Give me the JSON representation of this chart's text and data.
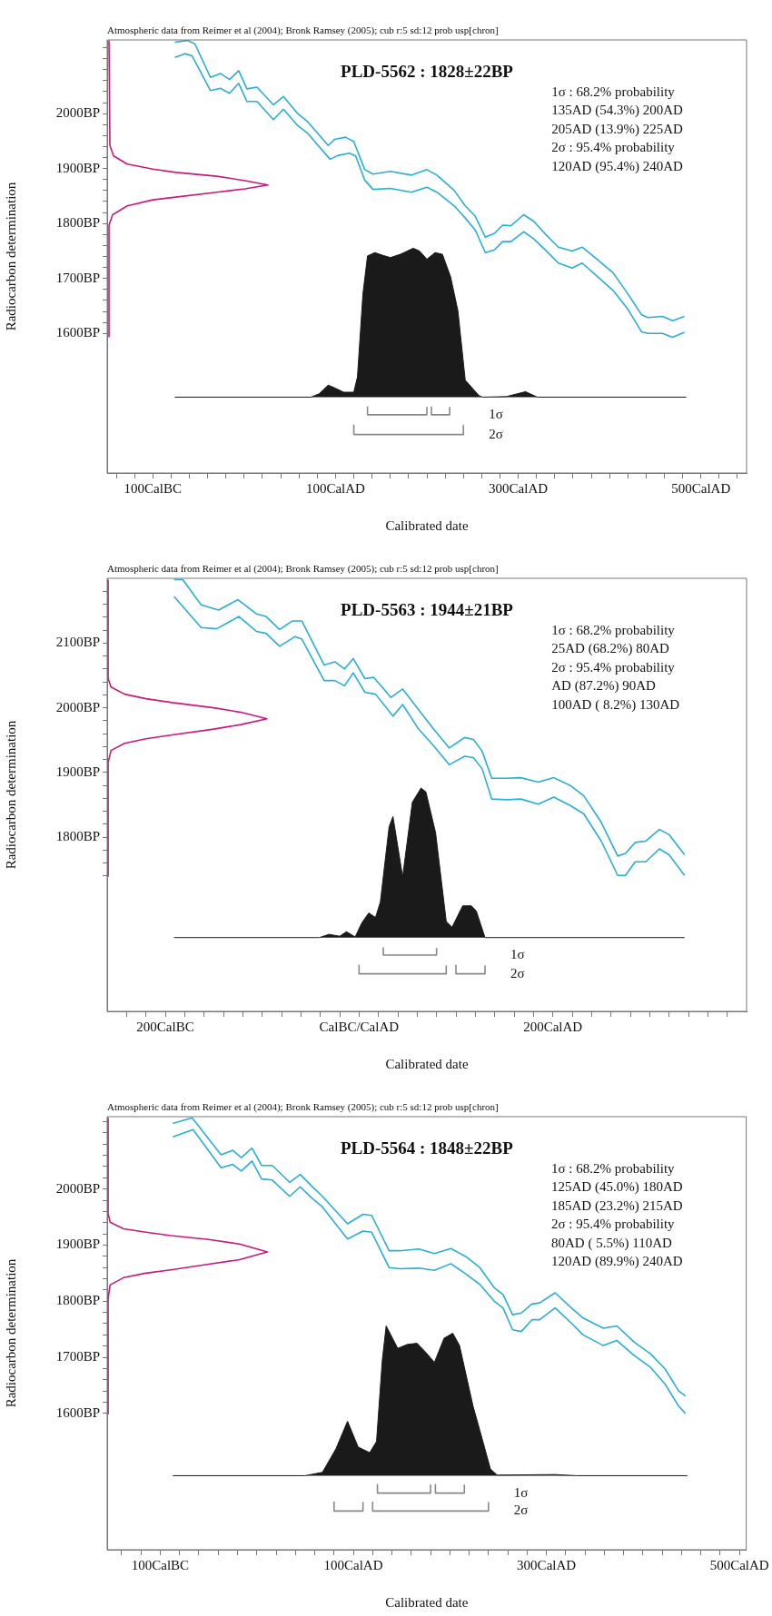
{
  "chart_data": [
    {
      "type": "line",
      "title": "PLD-5562 : 1828±22BP",
      "subtitle": "Atmospheric data from Reimer et al (2004); Bronk Ramsey (2005); cub r:5 sd:12 prob usp[chron]",
      "xlabel": "Calibrated date",
      "ylabel": "Radiocarbon determination",
      "xlim": [
        -150,
        550
      ],
      "ylim": [
        1346,
        2134
      ],
      "xticks": [
        {
          "value": -140,
          "label": null
        },
        {
          "value": -120,
          "label": null
        },
        {
          "value": -100,
          "label": "100CalBC"
        },
        {
          "value": -80,
          "label": null
        },
        {
          "value": -60,
          "label": null
        },
        {
          "value": -40,
          "label": null
        },
        {
          "value": -20,
          "label": null
        },
        {
          "value": 0,
          "label": null
        },
        {
          "value": 20,
          "label": null
        },
        {
          "value": 40,
          "label": null
        },
        {
          "value": 60,
          "label": null
        },
        {
          "value": 80,
          "label": null
        },
        {
          "value": 100,
          "label": "100CalAD"
        },
        {
          "value": 120,
          "label": null
        },
        {
          "value": 140,
          "label": null
        },
        {
          "value": 160,
          "label": null
        },
        {
          "value": 180,
          "label": null
        },
        {
          "value": 200,
          "label": null
        },
        {
          "value": 220,
          "label": null
        },
        {
          "value": 240,
          "label": null
        },
        {
          "value": 260,
          "label": null
        },
        {
          "value": 280,
          "label": null
        },
        {
          "value": 300,
          "label": "300CalAD"
        },
        {
          "value": 320,
          "label": null
        },
        {
          "value": 340,
          "label": null
        },
        {
          "value": 360,
          "label": null
        },
        {
          "value": 380,
          "label": null
        },
        {
          "value": 400,
          "label": null
        },
        {
          "value": 420,
          "label": null
        },
        {
          "value": 440,
          "label": null
        },
        {
          "value": 460,
          "label": null
        },
        {
          "value": 480,
          "label": null
        },
        {
          "value": 500,
          "label": "500CalAD"
        },
        {
          "value": 520,
          "label": null
        },
        {
          "value": 540,
          "label": null
        }
      ],
      "yticks": [
        {
          "value": 1600,
          "label": "1600BP"
        },
        {
          "value": 1620,
          "label": null
        },
        {
          "value": 1640,
          "label": null
        },
        {
          "value": 1660,
          "label": null
        },
        {
          "value": 1680,
          "label": null
        },
        {
          "value": 1700,
          "label": "1700BP"
        },
        {
          "value": 1720,
          "label": null
        },
        {
          "value": 1740,
          "label": null
        },
        {
          "value": 1760,
          "label": null
        },
        {
          "value": 1780,
          "label": null
        },
        {
          "value": 1800,
          "label": "1800BP"
        },
        {
          "value": 1820,
          "label": null
        },
        {
          "value": 1840,
          "label": null
        },
        {
          "value": 1860,
          "label": null
        },
        {
          "value": 1880,
          "label": null
        },
        {
          "value": 1900,
          "label": "1900BP"
        },
        {
          "value": 1920,
          "label": null
        },
        {
          "value": 1940,
          "label": null
        },
        {
          "value": 1960,
          "label": null
        },
        {
          "value": 1980,
          "label": null
        },
        {
          "value": 2000,
          "label": "2000BP"
        },
        {
          "value": 2020,
          "label": null
        },
        {
          "value": 2040,
          "label": null
        },
        {
          "value": 2060,
          "label": null
        },
        {
          "value": 2080,
          "label": null
        },
        {
          "value": 2100,
          "label": null
        },
        {
          "value": 2120,
          "label": null
        }
      ],
      "series": [
        {
          "color": "#2aaed3",
          "x": [
            -76,
            -62,
            -54,
            -37,
            -26,
            -16,
            -6,
            3,
            14,
            32,
            43,
            58,
            69,
            92,
            99,
            111,
            120,
            132,
            141,
            160,
            183,
            200,
            211,
            230,
            242,
            253,
            264,
            274,
            283,
            292,
            306,
            317,
            329,
            344,
            359,
            370,
            389,
            404,
            420,
            435,
            442,
            458,
            469,
            482
          ],
          "values": [
            2130,
            2133,
            2127,
            2066,
            2073,
            2062,
            2078,
            2045,
            2048,
            2016,
            2031,
            2001,
            1986,
            1942,
            1953,
            1957,
            1949,
            1898,
            1890,
            1895,
            1888,
            1898,
            1888,
            1860,
            1832,
            1813,
            1775,
            1782,
            1797,
            1796,
            1816,
            1804,
            1782,
            1757,
            1750,
            1757,
            1731,
            1710,
            1672,
            1634,
            1629,
            1631,
            1623,
            1631
          ]
        },
        {
          "color": "#2aaed3",
          "x": [
            -76,
            -65,
            -57,
            -37,
            -26,
            -16,
            -6,
            3,
            14,
            32,
            43,
            58,
            69,
            94,
            103,
            115,
            122,
            132,
            141,
            160,
            183,
            200,
            211,
            230,
            242,
            253,
            264,
            274,
            283,
            292,
            306,
            317,
            329,
            344,
            359,
            370,
            389,
            404,
            420,
            435,
            442,
            458,
            469,
            482
          ],
          "values": [
            2102,
            2109,
            2105,
            2042,
            2046,
            2037,
            2055,
            2022,
            2022,
            1989,
            2008,
            1979,
            1965,
            1917,
            1924,
            1928,
            1923,
            1879,
            1862,
            1864,
            1857,
            1866,
            1857,
            1832,
            1810,
            1788,
            1747,
            1752,
            1767,
            1767,
            1785,
            1772,
            1753,
            1728,
            1719,
            1728,
            1700,
            1678,
            1644,
            1603,
            1600,
            1600,
            1593,
            1602
          ]
        },
        {
          "color": "#c8197c",
          "x": [
            -148,
            -148,
            -144,
            -128,
            -100,
            -75,
            -30,
            1,
            26,
            1,
            -30,
            -75,
            -100,
            -128,
            -143,
            -147,
            -148
          ],
          "values": [
            1593,
            1797,
            1816,
            1832,
            1843,
            1848,
            1857,
            1863,
            1870,
            1878,
            1886,
            1893,
            1899,
            1908,
            1923,
            1942,
            2133
          ]
        },
        {
          "type": "area",
          "color": "#1a1a1a",
          "x": [
            -76,
            73,
            82,
            92,
            99,
            109,
            120,
            124,
            130,
            135,
            143,
            152,
            160,
            171,
            185,
            192,
            200,
            209,
            217,
            226,
            234,
            242,
            257,
            261,
            287,
            308,
            321,
            484
          ],
          "values": [
            1484,
            1484,
            1490,
            1506,
            1501,
            1493,
            1493,
            1521,
            1672,
            1741,
            1747,
            1742,
            1738,
            1744,
            1755,
            1750,
            1735,
            1747,
            1744,
            1703,
            1641,
            1515,
            1487,
            1484,
            1485,
            1494,
            1484,
            1484
          ]
        },
        {
          "name": "1σ",
          "color": "#888888",
          "x": [
            135,
            135,
            200,
            200,
            202,
            205,
            205,
            225,
            225
          ],
          "values": [
            1466,
            1452,
            1452,
            1466,
            null,
            1466,
            1452,
            1452,
            1466
          ]
        },
        {
          "name": "2σ",
          "color": "#888888",
          "x": [
            120,
            120,
            240,
            240
          ],
          "values": [
            1433,
            1416,
            1416,
            1433
          ]
        }
      ],
      "annotations": [
        "1σ : 68.2% probability",
        "135AD (54.3%) 200AD",
        "205AD (13.9%) 225AD",
        "2σ : 95.4% probability",
        "120AD (95.4%) 240AD"
      ]
    },
    {
      "type": "line",
      "title": "PLD-5563 : 1944±21BP",
      "subtitle": "Atmospheric data from Reimer et al (2004); Bronk Ramsey (2005); cub r:5 sd:12 prob usp[chron]",
      "xlabel": "Calibrated date",
      "ylabel": "Radiocarbon determination",
      "xlim": [
        -260,
        400
      ],
      "ylim": [
        1531,
        2200
      ],
      "xticks": [
        {
          "value": -240,
          "label": null
        },
        {
          "value": -220,
          "label": null
        },
        {
          "value": -200,
          "label": "200CalBC"
        },
        {
          "value": -180,
          "label": null
        },
        {
          "value": -160,
          "label": null
        },
        {
          "value": -140,
          "label": null
        },
        {
          "value": -120,
          "label": null
        },
        {
          "value": -100,
          "label": null
        },
        {
          "value": -80,
          "label": null
        },
        {
          "value": -60,
          "label": null
        },
        {
          "value": -40,
          "label": null
        },
        {
          "value": -20,
          "label": null
        },
        {
          "value": 0,
          "label": "CalBC/CalAD"
        },
        {
          "value": 20,
          "label": null
        },
        {
          "value": 40,
          "label": null
        },
        {
          "value": 60,
          "label": null
        },
        {
          "value": 80,
          "label": null
        },
        {
          "value": 100,
          "label": null
        },
        {
          "value": 120,
          "label": null
        },
        {
          "value": 140,
          "label": null
        },
        {
          "value": 160,
          "label": null
        },
        {
          "value": 180,
          "label": null
        },
        {
          "value": 200,
          "label": "200CalAD"
        },
        {
          "value": 220,
          "label": null
        },
        {
          "value": 240,
          "label": null
        },
        {
          "value": 260,
          "label": null
        },
        {
          "value": 280,
          "label": null
        },
        {
          "value": 300,
          "label": null
        },
        {
          "value": 320,
          "label": null
        },
        {
          "value": 340,
          "label": null
        },
        {
          "value": 360,
          "label": null
        },
        {
          "value": 380,
          "label": null
        }
      ],
      "yticks": [
        {
          "value": 1740,
          "label": null
        },
        {
          "value": 1760,
          "label": null
        },
        {
          "value": 1780,
          "label": null
        },
        {
          "value": 1800,
          "label": "1800BP"
        },
        {
          "value": 1820,
          "label": null
        },
        {
          "value": 1840,
          "label": null
        },
        {
          "value": 1860,
          "label": null
        },
        {
          "value": 1880,
          "label": null
        },
        {
          "value": 1900,
          "label": "1900BP"
        },
        {
          "value": 1920,
          "label": null
        },
        {
          "value": 1940,
          "label": null
        },
        {
          "value": 1960,
          "label": null
        },
        {
          "value": 1980,
          "label": null
        },
        {
          "value": 2000,
          "label": "2000BP"
        },
        {
          "value": 2020,
          "label": null
        },
        {
          "value": 2040,
          "label": null
        },
        {
          "value": 2060,
          "label": null
        },
        {
          "value": 2080,
          "label": null
        },
        {
          "value": 2100,
          "label": "2100BP"
        },
        {
          "value": 2120,
          "label": null
        },
        {
          "value": 2140,
          "label": null
        },
        {
          "value": 2160,
          "label": null
        },
        {
          "value": 2180,
          "label": null
        }
      ],
      "series": [
        {
          "color": "#2aaed3",
          "x": [
            -191,
            -182,
            -163,
            -145,
            -125,
            -106,
            -96,
            -82,
            -69,
            -59,
            -36,
            -25,
            -15,
            -6,
            6,
            15,
            33,
            45,
            62,
            76,
            93,
            109,
            118,
            127,
            137,
            153,
            167,
            185,
            201,
            218,
            232,
            250,
            267,
            275,
            285,
            296,
            310,
            320,
            336
          ],
          "values": [
            2198,
            2198,
            2159,
            2151,
            2167,
            2145,
            2141,
            2121,
            2134,
            2134,
            2066,
            2071,
            2060,
            2076,
            2045,
            2047,
            2016,
            2029,
            1996,
            1969,
            1938,
            1954,
            1951,
            1933,
            1891,
            1891,
            1892,
            1885,
            1892,
            1880,
            1864,
            1823,
            1771,
            1775,
            1792,
            1794,
            1812,
            1804,
            1773
          ]
        },
        {
          "color": "#2aaed3",
          "x": [
            -191,
            -163,
            -147,
            -124,
            -106,
            -96,
            -82,
            -66,
            -59,
            -36,
            -25,
            -15,
            -6,
            6,
            17,
            35,
            45,
            61,
            76,
            93,
            109,
            118,
            127,
            137,
            153,
            167,
            185,
            201,
            218,
            232,
            250,
            267,
            275,
            285,
            296,
            310,
            320,
            336
          ],
          "values": [
            2172,
            2124,
            2122,
            2141,
            2118,
            2115,
            2095,
            2110,
            2106,
            2042,
            2042,
            2034,
            2054,
            2024,
            2021,
            1987,
            2005,
            1968,
            1943,
            1912,
            1925,
            1923,
            1906,
            1859,
            1858,
            1859,
            1851,
            1862,
            1849,
            1836,
            1794,
            1741,
            1741,
            1762,
            1762,
            1782,
            1773,
            1741
          ]
        },
        {
          "color": "#c8197c",
          "x": [
            -259,
            -259,
            -256,
            -242,
            -220,
            -193,
            -150,
            -122,
            -95,
            -122,
            -150,
            -193,
            -220,
            -242,
            -256,
            -259,
            -259
          ],
          "values": [
            1739,
            1916,
            1934,
            1945,
            1952,
            1958,
            1967,
            1974,
            1983,
            1993,
            2000,
            2008,
            2014,
            2021,
            2032,
            2045,
            2198
          ]
        },
        {
          "type": "area",
          "color": "#1a1a1a",
          "x": [
            -191,
            -41,
            -31,
            -20,
            -13,
            -4,
            3,
            10,
            17,
            22,
            31,
            35,
            45,
            55,
            64,
            69,
            79,
            90,
            96,
            107,
            116,
            121,
            130,
            336
          ],
          "values": [
            1645,
            1645,
            1650,
            1647,
            1654,
            1646,
            1668,
            1683,
            1676,
            1700,
            1816,
            1832,
            1739,
            1854,
            1876,
            1870,
            1807,
            1670,
            1661,
            1694,
            1694,
            1686,
            1645,
            1645
          ]
        },
        {
          "name": "1σ",
          "color": "#888888",
          "x": [
            25,
            25,
            80,
            80
          ],
          "values": [
            1629,
            1618,
            1618,
            1629
          ]
        },
        {
          "name": "2σ",
          "color": "#888888",
          "x": [
            0,
            0,
            90,
            90,
            95,
            100,
            100,
            130,
            130
          ],
          "values": [
            1602,
            1589,
            1589,
            1602,
            null,
            1602,
            1589,
            1589,
            1602
          ]
        }
      ],
      "annotations": [
        "1σ : 68.2% probability",
        "25AD (68.2%) 80AD",
        "2σ : 95.4% probability",
        "AD (87.2%) 90AD",
        "100AD ( 8.2%) 130AD"
      ]
    },
    {
      "type": "line",
      "title": "PLD-5564 : 1848±22BP",
      "subtitle": "Atmospheric data from Reimer et al (2004); Bronk Ramsey (2005); cub r:5 sd:12 prob usp[chron]",
      "xlabel": "Calibrated date",
      "ylabel": "Radiocarbon determination",
      "xlim": [
        -155,
        507
      ],
      "ylim": [
        1357,
        2129
      ],
      "xticks": [
        {
          "value": -140,
          "label": null
        },
        {
          "value": -120,
          "label": null
        },
        {
          "value": -100,
          "label": "100CalBC"
        },
        {
          "value": -80,
          "label": null
        },
        {
          "value": -60,
          "label": null
        },
        {
          "value": -40,
          "label": null
        },
        {
          "value": -20,
          "label": null
        },
        {
          "value": 0,
          "label": null
        },
        {
          "value": 20,
          "label": null
        },
        {
          "value": 40,
          "label": null
        },
        {
          "value": 60,
          "label": null
        },
        {
          "value": 80,
          "label": null
        },
        {
          "value": 100,
          "label": "100CalAD"
        },
        {
          "value": 120,
          "label": null
        },
        {
          "value": 140,
          "label": null
        },
        {
          "value": 160,
          "label": null
        },
        {
          "value": 180,
          "label": null
        },
        {
          "value": 200,
          "label": null
        },
        {
          "value": 220,
          "label": null
        },
        {
          "value": 240,
          "label": null
        },
        {
          "value": 260,
          "label": null
        },
        {
          "value": 280,
          "label": null
        },
        {
          "value": 300,
          "label": "300CalAD"
        },
        {
          "value": 320,
          "label": null
        },
        {
          "value": 340,
          "label": null
        },
        {
          "value": 360,
          "label": null
        },
        {
          "value": 380,
          "label": null
        },
        {
          "value": 400,
          "label": null
        },
        {
          "value": 420,
          "label": null
        },
        {
          "value": 440,
          "label": null
        },
        {
          "value": 460,
          "label": null
        },
        {
          "value": 480,
          "label": null
        },
        {
          "value": 500,
          "label": "500CalAD"
        }
      ],
      "yticks": [
        {
          "value": 1600,
          "label": "1600BP"
        },
        {
          "value": 1620,
          "label": null
        },
        {
          "value": 1640,
          "label": null
        },
        {
          "value": 1660,
          "label": null
        },
        {
          "value": 1680,
          "label": null
        },
        {
          "value": 1700,
          "label": "1700BP"
        },
        {
          "value": 1720,
          "label": null
        },
        {
          "value": 1740,
          "label": null
        },
        {
          "value": 1760,
          "label": null
        },
        {
          "value": 1780,
          "label": null
        },
        {
          "value": 1800,
          "label": "1800BP"
        },
        {
          "value": 1820,
          "label": null
        },
        {
          "value": 1840,
          "label": null
        },
        {
          "value": 1860,
          "label": null
        },
        {
          "value": 1880,
          "label": null
        },
        {
          "value": 1900,
          "label": "1900BP"
        },
        {
          "value": 1920,
          "label": null
        },
        {
          "value": 1940,
          "label": null
        },
        {
          "value": 1960,
          "label": null
        },
        {
          "value": 1980,
          "label": null
        },
        {
          "value": 2000,
          "label": "2000BP"
        },
        {
          "value": 2020,
          "label": null
        },
        {
          "value": 2040,
          "label": null
        },
        {
          "value": 2060,
          "label": null
        },
        {
          "value": 2080,
          "label": null
        },
        {
          "value": 2100,
          "label": null
        },
        {
          "value": 2120,
          "label": null
        }
      ],
      "series": [
        {
          "color": "#2aaed3",
          "x": [
            -87,
            -67,
            -37,
            -25,
            -16,
            -5,
            5,
            16,
            34,
            45,
            57,
            68,
            94,
            110,
            119,
            137,
            148,
            168,
            184,
            201,
            217,
            231,
            246,
            255,
            265,
            274,
            285,
            293,
            309,
            324,
            338,
            359,
            373,
            391,
            408,
            423,
            437,
            444
          ],
          "values": [
            2117,
            2127,
            2061,
            2069,
            2056,
            2073,
            2042,
            2042,
            2012,
            2026,
            2005,
            1987,
            1938,
            1955,
            1953,
            1890,
            1890,
            1893,
            1885,
            1894,
            1879,
            1860,
            1824,
            1812,
            1776,
            1779,
            1795,
            1797,
            1815,
            1791,
            1770,
            1752,
            1756,
            1727,
            1706,
            1679,
            1640,
            1631
          ]
        },
        {
          "color": "#2aaed3",
          "x": [
            -87,
            -66,
            -37,
            -25,
            -16,
            -5,
            5,
            16,
            34,
            45,
            57,
            68,
            94,
            110,
            119,
            137,
            148,
            168,
            184,
            201,
            217,
            231,
            246,
            255,
            265,
            274,
            285,
            293,
            309,
            324,
            338,
            359,
            373,
            391,
            408,
            423,
            437,
            444
          ],
          "values": [
            2093,
            2106,
            2038,
            2044,
            2032,
            2050,
            2018,
            2016,
            1987,
            2004,
            1984,
            1968,
            1911,
            1925,
            1923,
            1860,
            1858,
            1859,
            1855,
            1867,
            1848,
            1830,
            1800,
            1788,
            1749,
            1746,
            1767,
            1767,
            1788,
            1764,
            1740,
            1721,
            1730,
            1703,
            1682,
            1652,
            1613,
            1600
          ]
        },
        {
          "color": "#c8197c",
          "x": [
            -154,
            -154,
            -152,
            -138,
            -115,
            -89,
            -50,
            -18,
            11,
            -18,
            -50,
            -89,
            -115,
            -138,
            -152,
            -154,
            -154
          ],
          "values": [
            1598,
            1805,
            1829,
            1842,
            1850,
            1856,
            1866,
            1874,
            1888,
            1902,
            1910,
            1917,
            1923,
            1929,
            1941,
            1956,
            2127
          ]
        },
        {
          "type": "area",
          "color": "#1a1a1a",
          "x": [
            -87,
            50,
            68,
            82,
            94,
            105,
            117,
            124,
            130,
            134,
            146,
            156,
            166,
            175,
            184,
            194,
            203,
            210,
            224,
            231,
            242,
            249,
            309,
            331,
            446
          ],
          "values": [
            1489,
            1489,
            1495,
            1537,
            1586,
            1540,
            1530,
            1550,
            1695,
            1756,
            1716,
            1723,
            1725,
            1709,
            1691,
            1734,
            1743,
            1721,
            1613,
            1570,
            1501,
            1490,
            1491,
            1489,
            1489
          ]
        },
        {
          "name": "1σ",
          "color": "#888888",
          "x": [
            125,
            125,
            180,
            180,
            182,
            185,
            185,
            215,
            215
          ],
          "values": [
            1473,
            1458,
            1458,
            1473,
            null,
            1473,
            1458,
            1458,
            1473
          ]
        },
        {
          "name": "2σ",
          "color": "#888888",
          "x": [
            80,
            80,
            110,
            110,
            115,
            120,
            120,
            240,
            240
          ],
          "values": [
            1442,
            1426,
            1426,
            1442,
            null,
            1442,
            1426,
            1426,
            1442
          ]
        }
      ],
      "annotations": [
        "1σ : 68.2% probability",
        "125AD (45.0%) 180AD",
        "185AD (23.2%) 215AD",
        "2σ : 95.4% probability",
        "80AD ( 5.5%) 110AD",
        "120AD (89.9%) 240AD"
      ]
    }
  ]
}
